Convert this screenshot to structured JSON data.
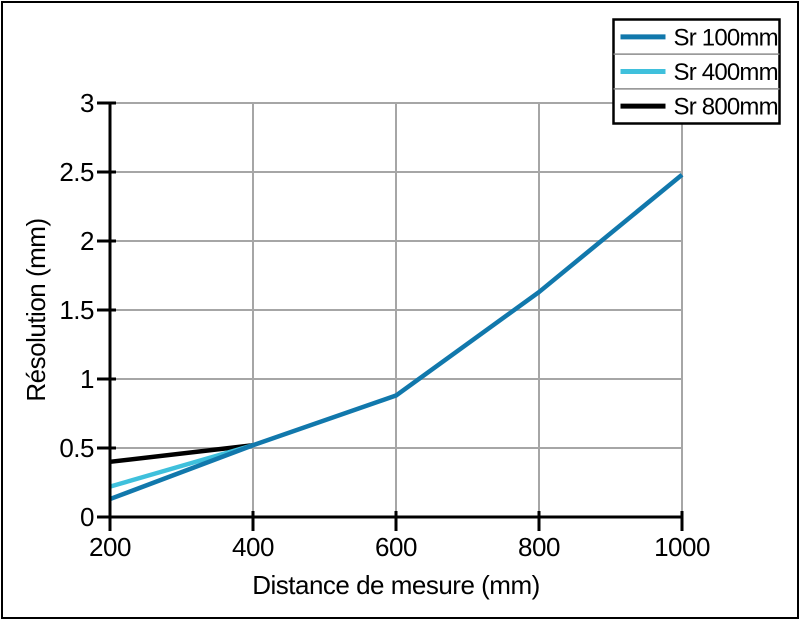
{
  "figure": {
    "background": "#ffffff",
    "frame_border_color": "#000000"
  },
  "chart_data": {
    "type": "line",
    "title": "",
    "xlabel": "Distance de mesure (mm)",
    "ylabel": "Résolution (mm)",
    "xlim": [
      200,
      1000
    ],
    "ylim": [
      0,
      3
    ],
    "x_ticks": [
      200,
      400,
      600,
      800,
      1000
    ],
    "y_ticks": [
      0,
      0.5,
      1,
      1.5,
      2,
      2.5,
      3
    ],
    "grid": true,
    "legend": {
      "position": "top-right"
    },
    "series": [
      {
        "name": "Sr 100mm",
        "color": "#1178ac",
        "x": [
          200,
          400,
          600,
          800,
          1000
        ],
        "y": [
          0.13,
          0.52,
          0.88,
          1.63,
          2.48
        ]
      },
      {
        "name": "Sr 400mm",
        "color": "#3fc0dc",
        "x": [
          200,
          400
        ],
        "y": [
          0.22,
          0.52
        ]
      },
      {
        "name": "Sr 800mm",
        "color": "#000000",
        "x": [
          200,
          400
        ],
        "y": [
          0.4,
          0.52
        ]
      }
    ],
    "colors": {
      "grid": "#a6a6a6",
      "axis": "#000000",
      "plot_background": "#ffffff",
      "legend_background": "#ffffff",
      "legend_border": "#000000",
      "legend_divider": "#8c8c8c",
      "text": "#000000"
    }
  }
}
